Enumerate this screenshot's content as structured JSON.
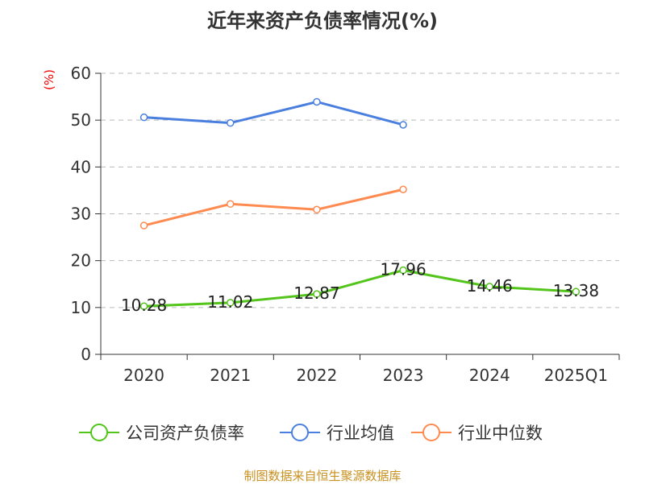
{
  "chart_data": {
    "type": "line",
    "title": "近年来资产负债率情况(%)",
    "ylabel": "(%)",
    "categories": [
      "2020",
      "2021",
      "2022",
      "2023",
      "2024",
      "2025Q1"
    ],
    "ylim": [
      0,
      60
    ],
    "yticks": [
      0,
      10,
      20,
      30,
      40,
      50,
      60
    ],
    "grid": true,
    "legend_position": "bottom",
    "series": [
      {
        "name": "公司资产负债率",
        "color": "#52c41a",
        "values": [
          10.28,
          11.02,
          12.87,
          17.96,
          14.46,
          13.38
        ],
        "labels": [
          "10.28",
          "11.02",
          "12.87",
          "17.96",
          "14.46",
          "13.38"
        ]
      },
      {
        "name": "行业均值",
        "color": "#4a7fe0",
        "values": [
          50.6,
          49.4,
          53.9,
          49.0,
          null,
          null
        ]
      },
      {
        "name": "行业中位数",
        "color": "#ff8a50",
        "values": [
          27.5,
          32.1,
          30.9,
          35.2,
          null,
          null
        ]
      }
    ]
  },
  "footer": "制图数据来自恒生聚源数据库"
}
